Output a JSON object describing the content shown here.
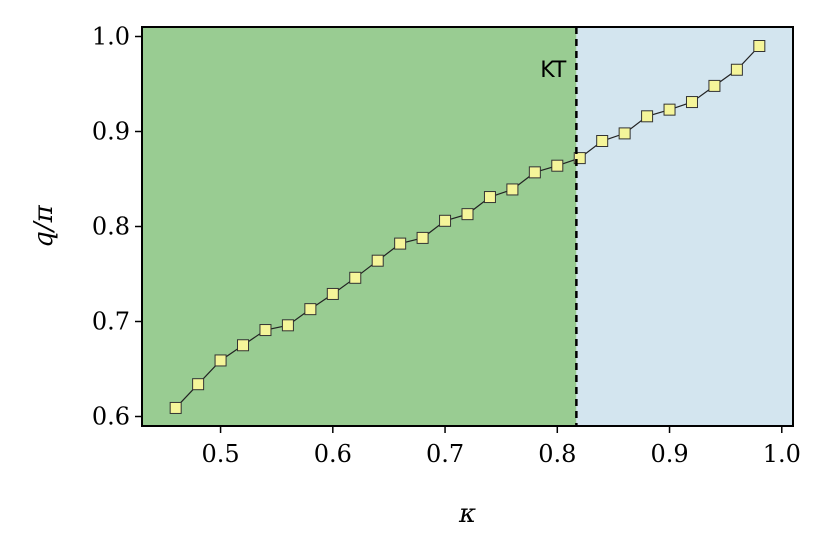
{
  "chart_data": {
    "type": "line",
    "title": "",
    "xlabel": "κ",
    "ylabel": "q/π",
    "xlim": [
      0.43,
      1.01
    ],
    "ylim": [
      0.59,
      1.01
    ],
    "xticks": [
      0.5,
      0.6,
      0.7,
      0.8,
      0.9,
      1.0
    ],
    "xtick_labels": [
      "0.5",
      "0.6",
      "0.7",
      "0.8",
      "0.9",
      "1.0"
    ],
    "yticks": [
      0.6,
      0.7,
      0.8,
      0.9,
      1.0
    ],
    "ytick_labels": [
      "0.6",
      "0.7",
      "0.8",
      "0.9",
      "1.0"
    ],
    "grid": false,
    "regions": [
      {
        "from": 0.43,
        "to": 0.817,
        "color": "#99cc92"
      },
      {
        "from": 0.817,
        "to": 1.01,
        "color": "#d3e5ef"
      }
    ],
    "transition": {
      "x": 0.817,
      "label": "KT",
      "style": "dashed",
      "color": "#000000"
    },
    "marker": {
      "shape": "square",
      "fill": "#f5f59a",
      "stroke": "#333333"
    },
    "line_color": "#222222",
    "series": [
      {
        "x": [
          0.46,
          0.48,
          0.5,
          0.52,
          0.54,
          0.56,
          0.58,
          0.6,
          0.62,
          0.64,
          0.66,
          0.68,
          0.7,
          0.72,
          0.74,
          0.76,
          0.78,
          0.8,
          0.82,
          0.84,
          0.86,
          0.88,
          0.9,
          0.92,
          0.94,
          0.96,
          0.98
        ],
        "y": [
          0.609,
          0.634,
          0.659,
          0.675,
          0.691,
          0.696,
          0.713,
          0.729,
          0.746,
          0.764,
          0.782,
          0.788,
          0.806,
          0.813,
          0.831,
          0.839,
          0.857,
          0.864,
          0.872,
          0.89,
          0.898,
          0.916,
          0.923,
          0.931,
          0.948,
          0.965,
          0.99
        ]
      }
    ]
  }
}
